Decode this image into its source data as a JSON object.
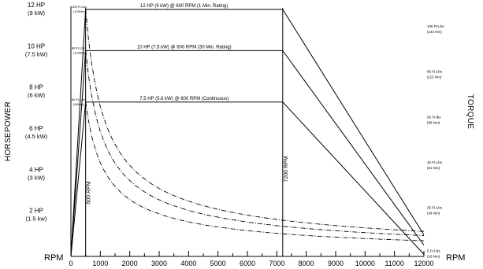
{
  "chart_data": {
    "type": "line",
    "x_title": "RPM",
    "x_title_right": "RPM",
    "left_title": "HORSEPOWER",
    "right_title": "TORQUE",
    "xlim": [
      0,
      12000
    ],
    "ylim": [
      0,
      12
    ],
    "x_ticks": [
      0,
      1000,
      2000,
      3000,
      4000,
      5000,
      6000,
      7000,
      8000,
      9000,
      10000,
      11000,
      12000
    ],
    "x_tick_labels": [
      "0",
      "1000",
      "2000",
      "3000",
      "4000",
      "5000",
      "6000",
      "7000",
      "8000",
      "9000",
      "10000",
      "11000",
      "12000"
    ],
    "left_ticks": [
      {
        "value": 2,
        "hp": "2 HP",
        "kw": "(1.5 kw)"
      },
      {
        "value": 4,
        "hp": "4 HP",
        "kw": "(3 kW)"
      },
      {
        "value": 6,
        "hp": "6 HP",
        "kw": "(4.5 kW)"
      },
      {
        "value": 8,
        "hp": "8 HP",
        "kw": "(6 kW)"
      },
      {
        "value": 10,
        "hp": "10 HP",
        "kw": "(7.5 kW)"
      },
      {
        "value": 12,
        "hp": "12 HP",
        "kw": "(9 kW)"
      }
    ],
    "right_ticks": [
      {
        "value": 0.1,
        "lbs": "5 Ft-Lbs",
        "nm": "(18 Nm)"
      },
      {
        "value": 2.2,
        "lbs": "25 Ft-Lbs",
        "nm": "(34 Nm)"
      },
      {
        "value": 4.4,
        "lbs": "45 Ft-Lbs",
        "nm": "(61 Nm)"
      },
      {
        "value": 6.6,
        "lbs": "65 Ft-lbs",
        "nm": "(88 Nm)"
      },
      {
        "value": 8.8,
        "lbs": "85 Ft-Lbs",
        "nm": "(115 Nm)"
      },
      {
        "value": 11.0,
        "lbs": "105 Ft-Lbs",
        "nm": "(143 Nm)"
      }
    ],
    "series": [
      {
        "name": "12 HP (9 kW) @ 600 RPM (1 Min. Rating)",
        "points": [
          [
            0,
            0
          ],
          [
            500,
            12
          ],
          [
            7200,
            12
          ],
          [
            12000,
            1.05
          ]
        ],
        "torque_peak_label": "105 Ft-Lbs",
        "torque_peak_sub": "(143Nm)",
        "torque_curve_scale": 5.95
      },
      {
        "name": "10 HP (7.5 kW) @ 600 RPM (30 Min. Rating)",
        "points": [
          [
            0,
            0
          ],
          [
            500,
            10
          ],
          [
            7200,
            10
          ],
          [
            12000,
            0.55
          ]
        ],
        "torque_peak_label": "88 Ft-Lbs",
        "torque_peak_sub": "(119Nm)",
        "torque_curve_scale": 4.75
      },
      {
        "name": "7.5 HP (5.6 kW) @ 600 RPM (Continuous)",
        "points": [
          [
            0,
            0
          ],
          [
            500,
            7.5
          ],
          [
            7200,
            7.5
          ],
          [
            12000,
            0.1
          ]
        ],
        "torque_peak_label": "66 Ft-Lbs",
        "torque_peak_sub": "(90Nm)",
        "torque_curve_scale": 3.55
      }
    ],
    "vlines": [
      {
        "x": 500,
        "label": "600 RPM"
      },
      {
        "x": 7200,
        "label": "7200 RPM"
      }
    ]
  }
}
